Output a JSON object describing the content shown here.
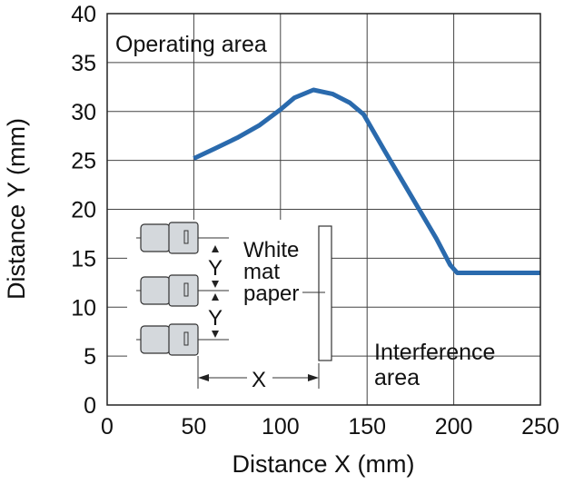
{
  "chart_data": {
    "type": "line",
    "xlabel": "Distance X (mm)",
    "ylabel": "Distance Y (mm)",
    "xlim": [
      0,
      250
    ],
    "ylim": [
      0,
      40
    ],
    "x_ticks": [
      0,
      50,
      100,
      150,
      200,
      250
    ],
    "y_ticks": [
      0,
      5,
      10,
      15,
      20,
      25,
      30,
      35,
      40
    ],
    "grid": true,
    "series": [
      {
        "color": "#2a6aad",
        "points": [
          [
            50,
            25.2
          ],
          [
            62,
            26.2
          ],
          [
            75,
            27.3
          ],
          [
            88,
            28.6
          ],
          [
            100,
            30.2
          ],
          [
            108,
            31.4
          ],
          [
            119,
            32.2
          ],
          [
            130,
            31.8
          ],
          [
            140,
            30.9
          ],
          [
            148,
            29.7
          ],
          [
            160,
            26.0
          ],
          [
            175,
            21.5
          ],
          [
            190,
            17.0
          ],
          [
            198,
            14.3
          ],
          [
            202,
            13.5
          ],
          [
            250,
            13.5
          ]
        ]
      }
    ],
    "annotations": {
      "operating_area": "Operating area",
      "interference_area_line1": "Interference",
      "interference_area_line2": "area"
    },
    "inset": {
      "label_line1": "White",
      "label_line2": "mat",
      "label_line3": "paper",
      "x_dim": "X",
      "y_dim": "Y"
    }
  }
}
